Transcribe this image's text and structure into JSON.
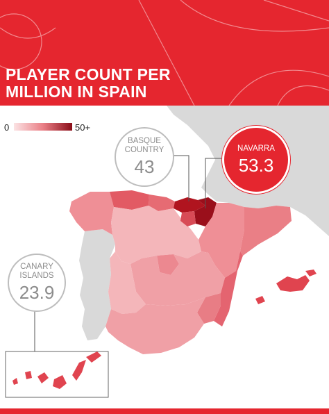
{
  "header": {
    "title_line1": "PLAYER COUNT PER",
    "title_line2": "MILLION IN SPAIN"
  },
  "legend": {
    "min_label": "0",
    "max_label": "50+",
    "color_low": "#fbe3e4",
    "color_high": "#8a0d18"
  },
  "callouts": {
    "basque": {
      "label_line1": "BASQUE",
      "label_line2": "COUNTRY",
      "value": "43"
    },
    "navarra": {
      "label": "NAVARRA",
      "value": "53.3"
    },
    "canary": {
      "label_line1": "CANARY",
      "label_line2": "ISLANDS",
      "value": "23.9"
    }
  },
  "colors": {
    "brand_red": "#e5262f",
    "neighbor_gray": "#d9d9d9",
    "sea": "#ffffff"
  }
}
